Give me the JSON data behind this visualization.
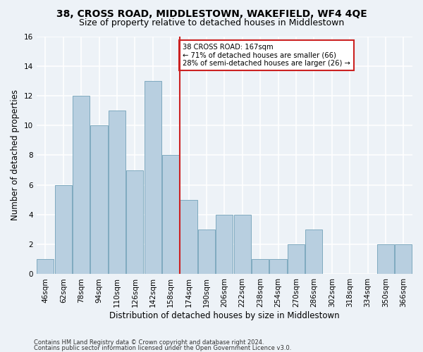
{
  "title": "38, CROSS ROAD, MIDDLESTOWN, WAKEFIELD, WF4 4QE",
  "subtitle": "Size of property relative to detached houses in Middlestown",
  "xlabel": "Distribution of detached houses by size in Middlestown",
  "ylabel": "Number of detached properties",
  "categories": [
    "46sqm",
    "62sqm",
    "78sqm",
    "94sqm",
    "110sqm",
    "126sqm",
    "142sqm",
    "158sqm",
    "174sqm",
    "190sqm",
    "206sqm",
    "222sqm",
    "238sqm",
    "254sqm",
    "270sqm",
    "286sqm",
    "302sqm",
    "318sqm",
    "334sqm",
    "350sqm",
    "366sqm"
  ],
  "values": [
    1,
    6,
    12,
    10,
    11,
    7,
    13,
    8,
    5,
    3,
    4,
    4,
    1,
    1,
    2,
    3,
    0,
    0,
    0,
    2,
    2
  ],
  "bar_color": "#b8cfe0",
  "bar_edge_color": "#7faabf",
  "marker_bar_index": 7,
  "annotation_text": "38 CROSS ROAD: 167sqm\n← 71% of detached houses are smaller (66)\n28% of semi-detached houses are larger (26) →",
  "annotation_box_color": "#ffffff",
  "annotation_box_edge": "#cc2222",
  "marker_line_color": "#cc2222",
  "ylim": [
    0,
    16
  ],
  "yticks": [
    0,
    2,
    4,
    6,
    8,
    10,
    12,
    14,
    16
  ],
  "footnote1": "Contains HM Land Registry data © Crown copyright and database right 2024.",
  "footnote2": "Contains public sector information licensed under the Open Government Licence v3.0.",
  "background_color": "#edf2f7",
  "grid_color": "#ffffff",
  "title_fontsize": 10,
  "subtitle_fontsize": 9,
  "label_fontsize": 8.5,
  "tick_fontsize": 7.5,
  "footnote_fontsize": 6.0
}
